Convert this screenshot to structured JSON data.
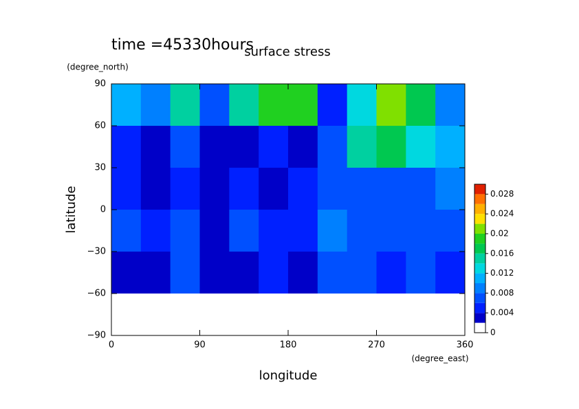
{
  "chart_data": {
    "type": "contour",
    "title": "surface stress",
    "subtitle": "time =45330hours",
    "x_label": "longitude",
    "x_units": "(degree_east)",
    "y_label": "latitude",
    "y_units": "(degree_north)",
    "xlim": [
      0,
      360
    ],
    "ylim": [
      -90,
      90
    ],
    "xticks": [
      0,
      90,
      180,
      270,
      360
    ],
    "yticks": [
      {
        "value": -90,
        "label": "−90"
      },
      {
        "value": -60,
        "label": "−60"
      },
      {
        "value": -30,
        "label": "−30"
      },
      0,
      30,
      60,
      90
    ],
    "x": [
      15,
      45,
      75,
      105,
      135,
      165,
      195,
      225,
      255,
      285,
      315,
      345
    ],
    "y": [
      75,
      45,
      15,
      -15,
      -45,
      -75
    ],
    "z": [
      [
        0.01,
        0.008,
        0.014,
        0.006,
        0.014,
        0.018,
        0.018,
        0.004,
        0.012,
        0.02,
        0.016,
        0.008
      ],
      [
        0.004,
        0.003,
        0.006,
        0.003,
        0.002,
        0.004,
        0.003,
        0.006,
        0.014,
        0.016,
        0.012,
        0.01
      ],
      [
        0.004,
        0.002,
        0.004,
        0.003,
        0.004,
        0.002,
        0.004,
        0.006,
        0.006,
        0.006,
        0.006,
        0.008
      ],
      [
        0.006,
        0.004,
        0.006,
        0.003,
        0.006,
        0.004,
        0.004,
        0.008,
        0.006,
        0.006,
        0.006,
        0.006
      ],
      [
        0.003,
        0.002,
        0.006,
        0.002,
        0.003,
        0.004,
        0.003,
        0.006,
        0.006,
        0.004,
        0.006,
        0.004
      ],
      [
        0,
        0,
        0,
        0,
        0,
        0,
        0,
        0,
        0,
        0,
        0,
        0
      ]
    ],
    "levels": [
      0,
      0.002,
      0.004,
      0.006,
      0.008,
      0.01,
      0.012,
      0.014,
      0.016,
      0.018,
      0.02,
      0.022,
      0.024,
      0.026,
      0.028,
      0.03
    ],
    "colors": [
      "#ffffff",
      "#0000c8",
      "#0020ff",
      "#0050ff",
      "#0080ff",
      "#00b0ff",
      "#00d8e0",
      "#00d0a0",
      "#00c850",
      "#20d020",
      "#80e000",
      "#ffe000",
      "#ffb000",
      "#ff7000",
      "#e02000"
    ],
    "colorbar_ticks": [
      0,
      0.004,
      0.008,
      0.012,
      0.016,
      0.02,
      0.024,
      0.028
    ]
  }
}
